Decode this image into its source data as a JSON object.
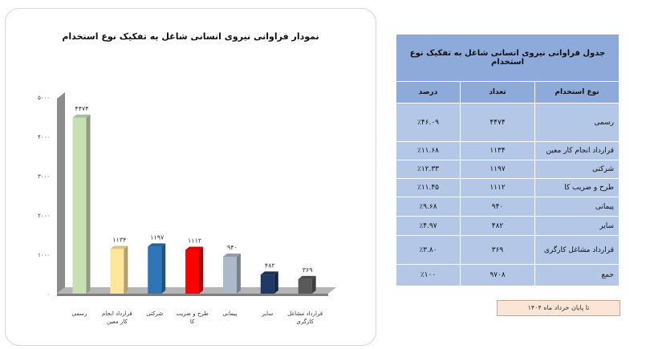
{
  "chart_data": {
    "type": "bar",
    "title": "نمودار فراوانی نیروی انسانی شاغل به تفکیک نوع استخدام",
    "categories": [
      "رسمی",
      "قرارداد انجام کار معین",
      "شرکتی",
      "طرح و ضریب کا",
      "پیمانی",
      "سایر",
      "قرارداد مشاغل کارگری"
    ],
    "values": [
      4474,
      1134,
      1197,
      1112,
      940,
      482,
      369
    ],
    "value_labels": [
      "۴۴۷۴",
      "۱۱۳۴",
      "۱۱۹۷",
      "۱۱۱۲",
      "۹۴۰",
      "۴۸۲",
      "۳۶۹"
    ],
    "yticks": [
      0,
      1000,
      2000,
      3000,
      4000,
      5000
    ],
    "ytick_labels": [
      "۰",
      "۱۰۰۰",
      "۲۰۰۰",
      "۳۰۰۰",
      "۴۰۰۰",
      "۵۰۰۰"
    ],
    "ylim": [
      0,
      5000
    ],
    "colors": [
      "#c6e0b4",
      "#ffe699",
      "#2e75b6",
      "#ff0000",
      "#acb9ca",
      "#1f3864",
      "#595959"
    ],
    "grid": false,
    "legend": "none",
    "bar_style": "3d"
  },
  "table": {
    "title": "جدول فراوانی نیروی انسانی شاغل به تفکیک نوع استخدام",
    "headers": {
      "type": "نوع استخدام",
      "count": "تعداد",
      "percent": "درصد"
    },
    "rows": [
      {
        "type": "رسمی",
        "count": "۴۴۷۴",
        "percent": "٪۴۶.۰۹"
      },
      {
        "type": "قرارداد انجام کار معین",
        "count": "۱۱۳۴",
        "percent": "٪۱۱.۶۸"
      },
      {
        "type": "شرکتی",
        "count": "۱۱۹۷",
        "percent": "٪۱۲.۳۳"
      },
      {
        "type": "طرح و ضریب کا",
        "count": "۱۱۱۲",
        "percent": "٪۱۱.۴۵"
      },
      {
        "type": "پیمانی",
        "count": "۹۴۰",
        "percent": "٪۹.۶۸"
      },
      {
        "type": "سایر",
        "count": "۴۸۲",
        "percent": "٪۴.۹۷"
      },
      {
        "type": "قرارداد مشاغل کارگری",
        "count": "۳۶۹",
        "percent": "٪۳.۸۰"
      },
      {
        "type": "جمع",
        "count": "۹۷۰۸",
        "percent": "٪۱۰۰"
      }
    ]
  },
  "source_note": "تا پایان خرداد ماه ۱۴۰۴"
}
